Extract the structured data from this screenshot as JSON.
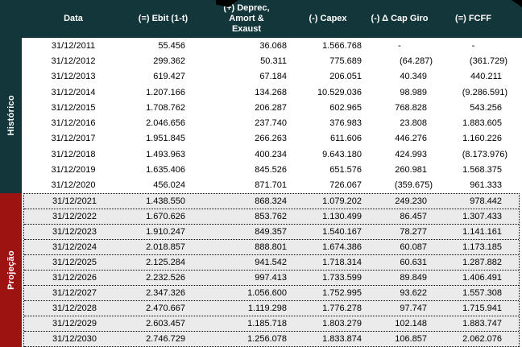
{
  "table": {
    "columns": [
      {
        "key": "data",
        "label": "Data"
      },
      {
        "key": "ebit",
        "label": "(=) Ebit (1-t)"
      },
      {
        "key": "deprec",
        "label": "(+) Deprec,\nAmort &\nExaust"
      },
      {
        "key": "capex",
        "label": "(-) Capex"
      },
      {
        "key": "capgiro",
        "label": "(-) Δ Cap Giro"
      },
      {
        "key": "fcff",
        "label": "(=) FCFF"
      }
    ],
    "sections": [
      {
        "name": "Histórico",
        "rows": [
          {
            "date": "31/12/2011",
            "values": [
              "55.456",
              "36.068",
              "1.566.768",
              "-",
              "-"
            ]
          },
          {
            "date": "31/12/2012",
            "values": [
              "299.362",
              "50.311",
              "775.689",
              "(64.287)",
              "(361.729)"
            ]
          },
          {
            "date": "31/12/2013",
            "values": [
              "619.427",
              "67.184",
              "206.051",
              "40.349",
              "440.211"
            ]
          },
          {
            "date": "31/12/2014",
            "values": [
              "1.207.166",
              "134.268",
              "10.529.036",
              "98.989",
              "(9.286.591)"
            ]
          },
          {
            "date": "31/12/2015",
            "values": [
              "1.708.762",
              "206.287",
              "602.965",
              "768.828",
              "543.256"
            ]
          },
          {
            "date": "31/12/2016",
            "values": [
              "2.046.656",
              "237.740",
              "376.983",
              "23.808",
              "1.883.605"
            ]
          },
          {
            "date": "31/12/2017",
            "values": [
              "1.951.845",
              "266.263",
              "611.606",
              "446.276",
              "1.160.226"
            ]
          },
          {
            "date": "31/12/2018",
            "values": [
              "1.493.963",
              "400.234",
              "9.643.180",
              "424.993",
              "(8.173.976)"
            ]
          },
          {
            "date": "31/12/2019",
            "values": [
              "1.635.406",
              "845.526",
              "651.576",
              "260.981",
              "1.568.375"
            ]
          },
          {
            "date": "31/12/2020",
            "values": [
              "456.024",
              "871.701",
              "726.067",
              "(359.675)",
              "961.333"
            ]
          }
        ]
      },
      {
        "name": "Projeção",
        "rows": [
          {
            "date": "31/12/2021",
            "values": [
              "1.438.550",
              "868.324",
              "1.079.202",
              "249.230",
              "978.442"
            ]
          },
          {
            "date": "31/12/2022",
            "values": [
              "1.670.626",
              "853.762",
              "1.130.499",
              "86.457",
              "1.307.433"
            ]
          },
          {
            "date": "31/12/2023",
            "values": [
              "1.910.247",
              "849.357",
              "1.540.167",
              "78.277",
              "1.141.161"
            ]
          },
          {
            "date": "31/12/2024",
            "values": [
              "2.018.857",
              "888.801",
              "1.674.386",
              "60.087",
              "1.173.185"
            ]
          },
          {
            "date": "31/12/2025",
            "values": [
              "2.125.284",
              "941.542",
              "1.718.314",
              "60.631",
              "1.287.882"
            ]
          },
          {
            "date": "31/12/2026",
            "values": [
              "2.232.526",
              "997.413",
              "1.733.599",
              "89.849",
              "1.406.491"
            ]
          },
          {
            "date": "31/12/2027",
            "values": [
              "2.347.326",
              "1.056.600",
              "1.752.995",
              "93.622",
              "1.557.308"
            ]
          },
          {
            "date": "31/12/2028",
            "values": [
              "2.470.667",
              "1.119.298",
              "1.776.278",
              "97.747",
              "1.715.941"
            ]
          },
          {
            "date": "31/12/2029",
            "values": [
              "2.603.457",
              "1.185.718",
              "1.803.279",
              "102.148",
              "1.883.747"
            ]
          },
          {
            "date": "31/12/2030",
            "values": [
              "2.746.729",
              "1.256.078",
              "1.833.874",
              "106.857",
              "2.062.076"
            ]
          }
        ]
      }
    ]
  },
  "colors": {
    "header_teal": "#123639",
    "projection_red": "#9c1312",
    "projection_row_bg": "#ebebeb",
    "header_text": "#ffffff",
    "body_text": "#000000"
  }
}
